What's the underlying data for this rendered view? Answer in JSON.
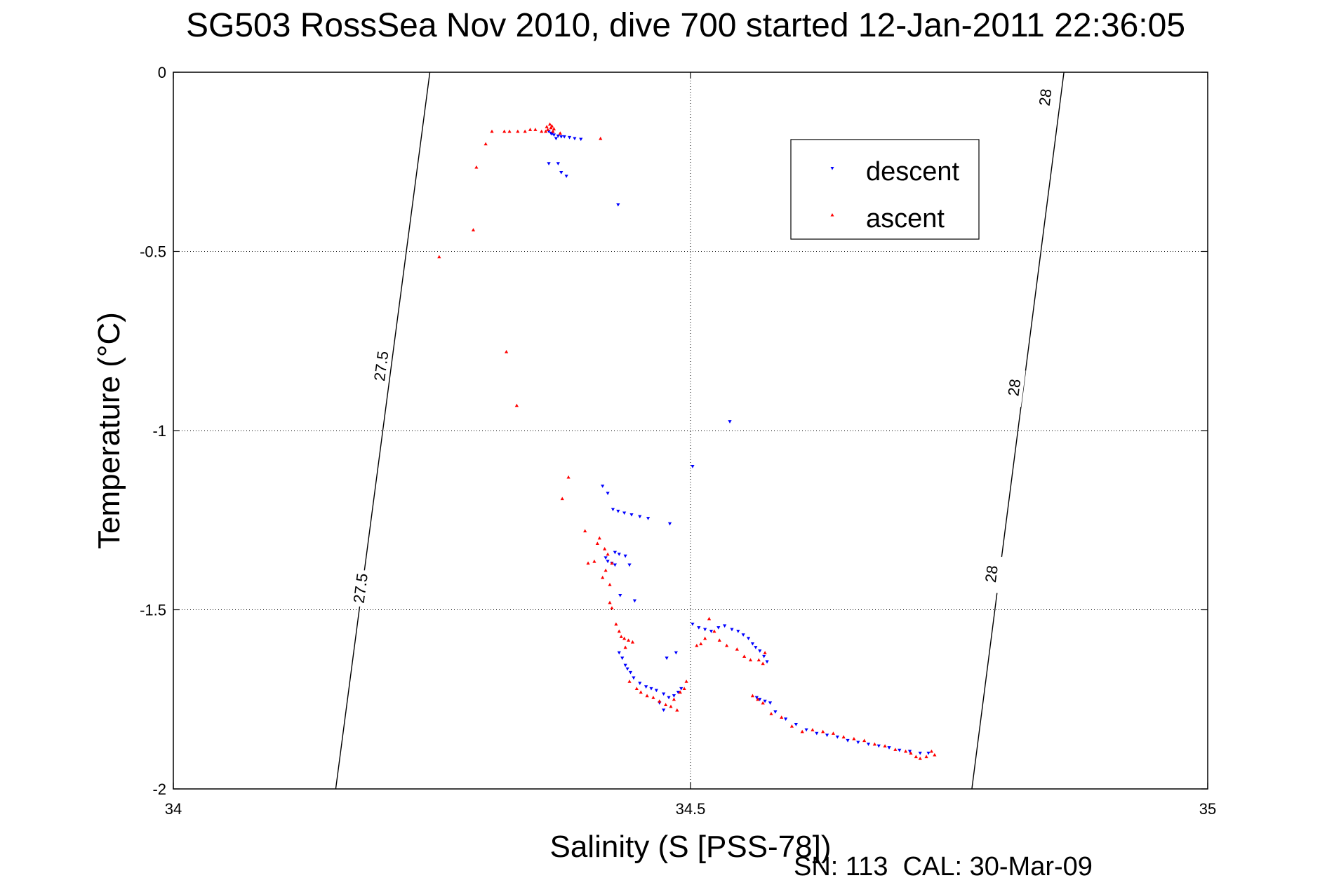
{
  "chart_data": {
    "type": "scatter",
    "title": "SG503 RossSea Nov 2010, dive 700 started 12-Jan-2011 22:36:05",
    "xlabel": "Salinity (S [PSS-78])",
    "ylabel": "Temperature (°C)",
    "footer": "SN: 113  CAL: 30-Mar-09",
    "xlim": [
      34,
      35
    ],
    "ylim": [
      -2,
      0
    ],
    "xticks": [
      {
        "value": 34,
        "label": "34"
      },
      {
        "value": 34.5,
        "label": "34.5"
      },
      {
        "value": 35,
        "label": "35"
      }
    ],
    "yticks": [
      {
        "value": 0,
        "label": "0"
      },
      {
        "value": -0.5,
        "label": "-0.5"
      },
      {
        "value": -1,
        "label": "-1"
      },
      {
        "value": -1.5,
        "label": "-1.5"
      },
      {
        "value": -2,
        "label": "-2"
      }
    ],
    "grid": true,
    "legend_position": "top-right",
    "isopycnals": [
      {
        "label": "27.5",
        "points": [
          [
            34.157,
            -2.0
          ],
          [
            34.248,
            0.0
          ]
        ],
        "label_positions": [
          [
            34.181,
            -1.44
          ],
          [
            34.201,
            -0.82
          ]
        ]
      },
      {
        "label": "28",
        "points": [
          [
            34.772,
            -2.0
          ],
          [
            34.861,
            0.0
          ]
        ],
        "label_positions": [
          [
            34.791,
            -1.4
          ],
          [
            34.813,
            -0.88
          ],
          [
            34.843,
            -0.07
          ]
        ]
      }
    ],
    "series": [
      {
        "name": "descent",
        "marker": "triangle-down",
        "color": "#0000ff",
        "points": [
          [
            34.363,
            -0.165
          ],
          [
            34.365,
            -0.17
          ],
          [
            34.368,
            -0.175
          ],
          [
            34.372,
            -0.178
          ],
          [
            34.375,
            -0.18
          ],
          [
            34.378,
            -0.18
          ],
          [
            34.383,
            -0.182
          ],
          [
            34.388,
            -0.185
          ],
          [
            34.394,
            -0.187
          ],
          [
            34.37,
            -0.185
          ],
          [
            34.366,
            -0.172
          ],
          [
            34.363,
            -0.255
          ],
          [
            34.372,
            -0.255
          ],
          [
            34.375,
            -0.28
          ],
          [
            34.38,
            -0.29
          ],
          [
            34.43,
            -0.37
          ],
          [
            34.538,
            -0.975
          ],
          [
            34.502,
            -1.1
          ],
          [
            34.415,
            -1.155
          ],
          [
            34.42,
            -1.175
          ],
          [
            34.425,
            -1.22
          ],
          [
            34.43,
            -1.225
          ],
          [
            34.436,
            -1.23
          ],
          [
            34.443,
            -1.235
          ],
          [
            34.451,
            -1.24
          ],
          [
            34.459,
            -1.245
          ],
          [
            34.48,
            -1.26
          ],
          [
            34.427,
            -1.34
          ],
          [
            34.431,
            -1.345
          ],
          [
            34.437,
            -1.35
          ],
          [
            34.418,
            -1.355
          ],
          [
            34.42,
            -1.365
          ],
          [
            34.424,
            -1.37
          ],
          [
            34.427,
            -1.375
          ],
          [
            34.441,
            -1.375
          ],
          [
            34.432,
            -1.46
          ],
          [
            34.446,
            -1.475
          ],
          [
            34.431,
            -1.62
          ],
          [
            34.434,
            -1.635
          ],
          [
            34.437,
            -1.655
          ],
          [
            34.439,
            -1.665
          ],
          [
            34.442,
            -1.675
          ],
          [
            34.445,
            -1.69
          ],
          [
            34.451,
            -1.705
          ],
          [
            34.457,
            -1.715
          ],
          [
            34.462,
            -1.72
          ],
          [
            34.467,
            -1.725
          ],
          [
            34.474,
            -1.735
          ],
          [
            34.479,
            -1.745
          ],
          [
            34.484,
            -1.74
          ],
          [
            34.488,
            -1.73
          ],
          [
            34.491,
            -1.72
          ],
          [
            34.474,
            -1.78
          ],
          [
            34.47,
            -1.76
          ],
          [
            34.477,
            -1.635
          ],
          [
            34.486,
            -1.62
          ],
          [
            34.502,
            -1.54
          ],
          [
            34.508,
            -1.55
          ],
          [
            34.514,
            -1.555
          ],
          [
            34.52,
            -1.56
          ],
          [
            34.527,
            -1.55
          ],
          [
            34.533,
            -1.545
          ],
          [
            34.54,
            -1.555
          ],
          [
            34.546,
            -1.56
          ],
          [
            34.551,
            -1.57
          ],
          [
            34.556,
            -1.58
          ],
          [
            34.56,
            -1.595
          ],
          [
            34.563,
            -1.605
          ],
          [
            34.567,
            -1.615
          ],
          [
            34.571,
            -1.63
          ],
          [
            34.574,
            -1.645
          ],
          [
            34.564,
            -1.745
          ],
          [
            34.567,
            -1.75
          ],
          [
            34.572,
            -1.755
          ],
          [
            34.577,
            -1.76
          ],
          [
            34.582,
            -1.785
          ],
          [
            34.592,
            -1.805
          ],
          [
            34.602,
            -1.82
          ],
          [
            34.612,
            -1.835
          ],
          [
            34.622,
            -1.845
          ],
          [
            34.632,
            -1.85
          ],
          [
            34.642,
            -1.855
          ],
          [
            34.652,
            -1.865
          ],
          [
            34.662,
            -1.87
          ],
          [
            34.672,
            -1.875
          ],
          [
            34.682,
            -1.88
          ],
          [
            34.692,
            -1.885
          ],
          [
            34.702,
            -1.892
          ],
          [
            34.712,
            -1.895
          ],
          [
            34.722,
            -1.9
          ],
          [
            34.73,
            -1.9
          ]
        ]
      },
      {
        "name": "ascent",
        "marker": "triangle-up",
        "color": "#ff0000",
        "points": [
          [
            34.32,
            -0.165
          ],
          [
            34.325,
            -0.165
          ],
          [
            34.333,
            -0.165
          ],
          [
            34.34,
            -0.165
          ],
          [
            34.345,
            -0.16
          ],
          [
            34.35,
            -0.16
          ],
          [
            34.356,
            -0.165
          ],
          [
            34.36,
            -0.165
          ],
          [
            34.362,
            -0.16
          ],
          [
            34.365,
            -0.155
          ],
          [
            34.364,
            -0.145
          ],
          [
            34.366,
            -0.15
          ],
          [
            34.368,
            -0.158
          ],
          [
            34.361,
            -0.152
          ],
          [
            34.367,
            -0.165
          ],
          [
            34.374,
            -0.17
          ],
          [
            34.308,
            -0.165
          ],
          [
            34.413,
            -0.185
          ],
          [
            34.302,
            -0.2
          ],
          [
            34.293,
            -0.265
          ],
          [
            34.29,
            -0.44
          ],
          [
            34.257,
            -0.515
          ],
          [
            34.322,
            -0.78
          ],
          [
            34.332,
            -0.93
          ],
          [
            34.382,
            -1.13
          ],
          [
            34.376,
            -1.19
          ],
          [
            34.398,
            -1.28
          ],
          [
            34.412,
            -1.3
          ],
          [
            34.41,
            -1.315
          ],
          [
            34.417,
            -1.33
          ],
          [
            34.42,
            -1.345
          ],
          [
            34.424,
            -1.37
          ],
          [
            34.401,
            -1.37
          ],
          [
            34.407,
            -1.365
          ],
          [
            34.418,
            -1.39
          ],
          [
            34.415,
            -1.41
          ],
          [
            34.422,
            -1.43
          ],
          [
            34.422,
            -1.48
          ],
          [
            34.424,
            -1.495
          ],
          [
            34.428,
            -1.54
          ],
          [
            34.431,
            -1.56
          ],
          [
            34.433,
            -1.575
          ],
          [
            34.436,
            -1.58
          ],
          [
            34.44,
            -1.585
          ],
          [
            34.444,
            -1.59
          ],
          [
            34.437,
            -1.605
          ],
          [
            34.441,
            -1.7
          ],
          [
            34.448,
            -1.72
          ],
          [
            34.452,
            -1.73
          ],
          [
            34.458,
            -1.74
          ],
          [
            34.464,
            -1.745
          ],
          [
            34.47,
            -1.755
          ],
          [
            34.476,
            -1.765
          ],
          [
            34.481,
            -1.77
          ],
          [
            34.484,
            -1.75
          ],
          [
            34.49,
            -1.73
          ],
          [
            34.494,
            -1.72
          ],
          [
            34.496,
            -1.7
          ],
          [
            34.487,
            -1.78
          ],
          [
            34.506,
            -1.6
          ],
          [
            34.51,
            -1.595
          ],
          [
            34.514,
            -1.58
          ],
          [
            34.518,
            -1.525
          ],
          [
            34.523,
            -1.56
          ],
          [
            34.528,
            -1.585
          ],
          [
            34.535,
            -1.6
          ],
          [
            34.545,
            -1.61
          ],
          [
            34.552,
            -1.63
          ],
          [
            34.558,
            -1.64
          ],
          [
            34.566,
            -1.64
          ],
          [
            34.57,
            -1.65
          ],
          [
            34.572,
            -1.62
          ],
          [
            34.56,
            -1.74
          ],
          [
            34.565,
            -1.75
          ],
          [
            34.57,
            -1.76
          ],
          [
            34.578,
            -1.79
          ],
          [
            34.588,
            -1.8
          ],
          [
            34.598,
            -1.825
          ],
          [
            34.608,
            -1.84
          ],
          [
            34.618,
            -1.835
          ],
          [
            34.628,
            -1.84
          ],
          [
            34.638,
            -1.845
          ],
          [
            34.648,
            -1.855
          ],
          [
            34.658,
            -1.86
          ],
          [
            34.668,
            -1.865
          ],
          [
            34.678,
            -1.875
          ],
          [
            34.688,
            -1.88
          ],
          [
            34.698,
            -1.89
          ],
          [
            34.708,
            -1.895
          ],
          [
            34.713,
            -1.9
          ],
          [
            34.718,
            -1.91
          ],
          [
            34.722,
            -1.915
          ],
          [
            34.728,
            -1.91
          ],
          [
            34.733,
            -1.895
          ],
          [
            34.736,
            -1.905
          ]
        ]
      }
    ]
  }
}
